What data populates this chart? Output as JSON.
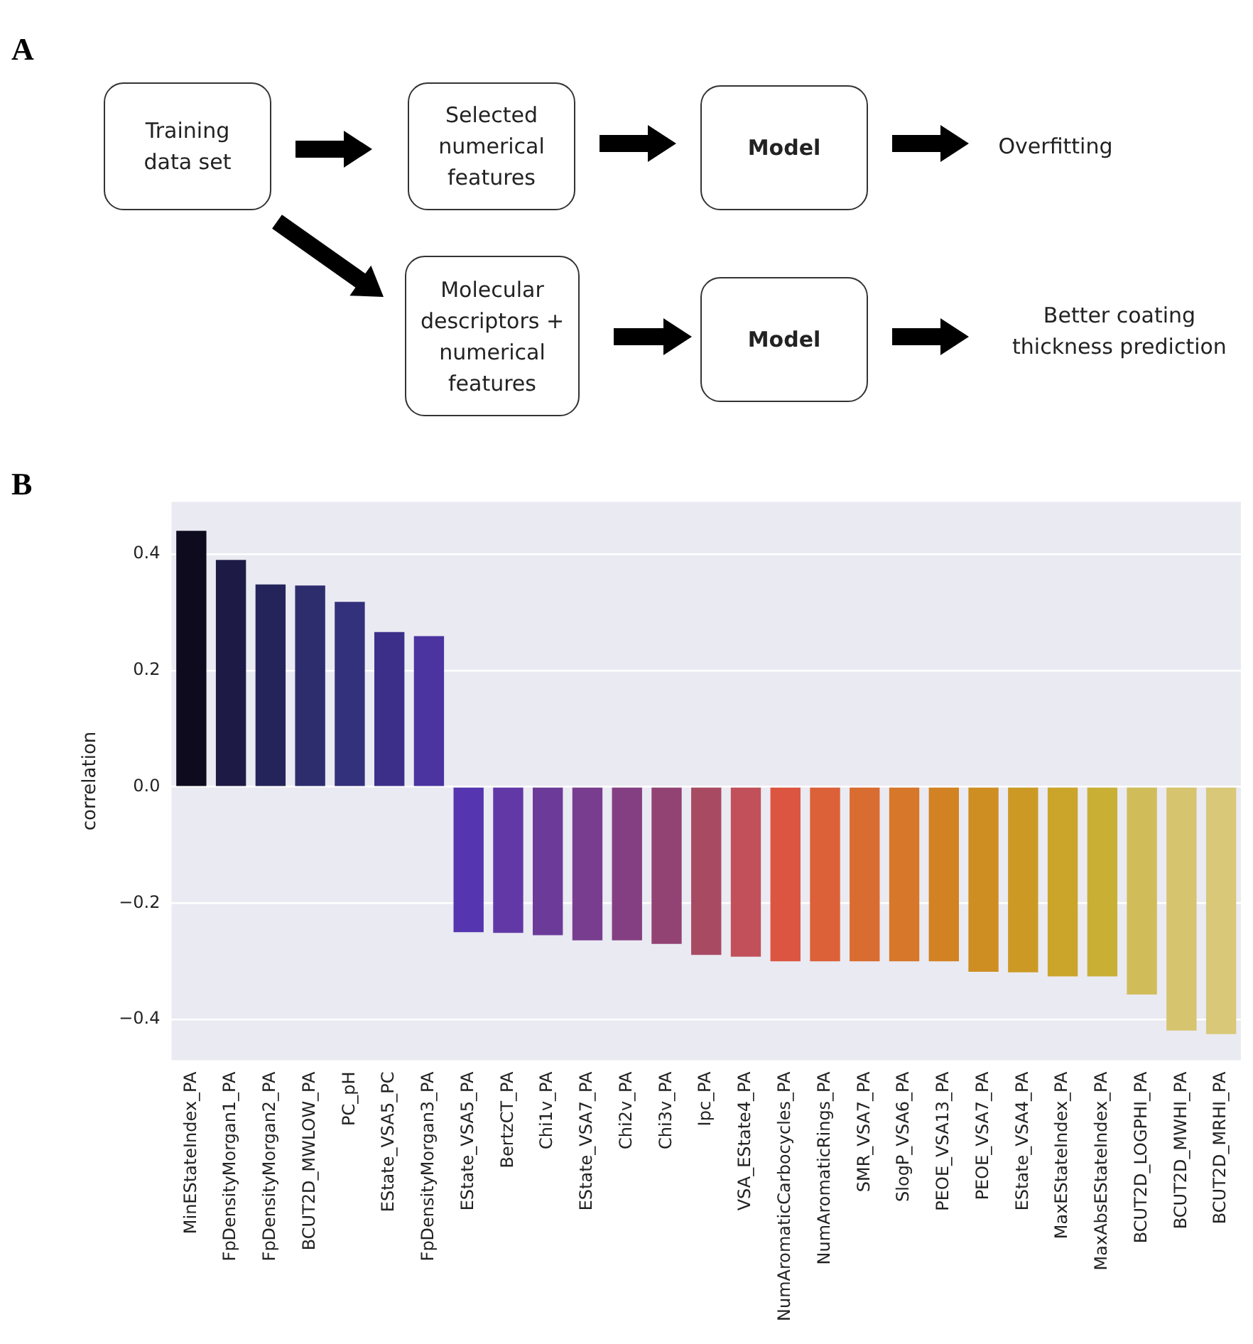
{
  "chart_data": [
    {
      "type": "other",
      "title": "A",
      "annotations": [
        "Training data set",
        "Selected numerical features",
        "Model",
        "Overfitting",
        "Molecular descriptors + numerical features",
        "Model",
        "Better coating thickness prediction"
      ]
    },
    {
      "type": "bar",
      "title": "B",
      "ylabel": "correlation",
      "categories": [
        "MinEStateIndex_PA",
        "FpDensityMorgan1_PA",
        "FpDensityMorgan2_PA",
        "BCUT2D_MWLOW_PA",
        "PC_pH",
        "EState_VSA5_PC",
        "FpDensityMorgan3_PA",
        "EState_VSA5_PA",
        "BertzCT_PA",
        "Chi1v_PA",
        "EState_VSA7_PA",
        "Chi2v_PA",
        "Chi3v_PA",
        "Ipc_PA",
        "VSA_EState4_PA",
        "NumAromaticCarbocycles_PA",
        "NumAromaticRings_PA",
        "SMR_VSA7_PA",
        "SlogP_VSA6_PA",
        "PEOE_VSA13_PA",
        "PEOE_VSA7_PA",
        "EState_VSA4_PA",
        "MaxEStateIndex_PA",
        "MaxAbsEStateIndex_PA",
        "BCUT2D_LOGPHI_PA",
        "BCUT2D_MWHI_PA",
        "BCUT2D_MRHI_PA"
      ],
      "values": [
        0.44,
        0.39,
        0.348,
        0.346,
        0.318,
        0.266,
        0.259,
        -0.25,
        -0.251,
        -0.255,
        -0.264,
        -0.264,
        -0.27,
        -0.289,
        -0.292,
        -0.3,
        -0.3,
        -0.3,
        -0.3,
        -0.3,
        -0.318,
        -0.319,
        -0.326,
        -0.326,
        -0.357,
        -0.419,
        -0.425
      ],
      "colors": [
        "#0e0b1f",
        "#1d1b45",
        "#24245a",
        "#2d2d6e",
        "#33307c",
        "#3b2f8a",
        "#4b33a0",
        "#5535b0",
        "#6238a6",
        "#6c3b9a",
        "#783d8e",
        "#843f82",
        "#924373",
        "#a84a62",
        "#c2505a",
        "#dc5540",
        "#dc6038",
        "#d96c30",
        "#d6772a",
        "#d28223",
        "#ce8e22",
        "#cc9a24",
        "#cba52a",
        "#c9b035",
        "#d0bd5a",
        "#d6c46e",
        "#d8c878"
      ],
      "ylim": [
        -0.47,
        0.49
      ],
      "yticks": [
        {
          "value": -0.4,
          "label": "−0.4"
        },
        {
          "value": -0.2,
          "label": "−0.2"
        },
        {
          "value": 0,
          "label": "0.0"
        },
        {
          "value": 0.2,
          "label": "0.2"
        },
        {
          "value": 0.4,
          "label": "0.4"
        }
      ],
      "grid": "y"
    }
  ]
}
